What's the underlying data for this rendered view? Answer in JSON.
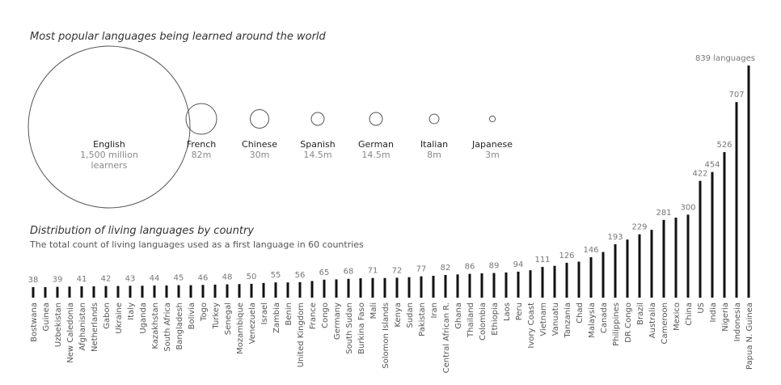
{
  "chart_data": [
    {
      "type": "bubble",
      "title": "Most popular languages being learned around the world",
      "unit": "million learners",
      "items": [
        {
          "name": "English",
          "value": 1500,
          "label_lines": [
            "1,500 million",
            "learners"
          ]
        },
        {
          "name": "French",
          "value": 82,
          "label_lines": [
            "82m"
          ]
        },
        {
          "name": "Chinese",
          "value": 30,
          "label_lines": [
            "30m"
          ]
        },
        {
          "name": "Spanish",
          "value": 14.5,
          "label_lines": [
            "14.5m"
          ]
        },
        {
          "name": "German",
          "value": 14.5,
          "label_lines": [
            "14.5m"
          ]
        },
        {
          "name": "Italian",
          "value": 8,
          "label_lines": [
            "8m"
          ]
        },
        {
          "name": "Japanese",
          "value": 3,
          "label_lines": [
            "3m"
          ]
        }
      ],
      "colors": {
        "stroke": "#555555"
      }
    },
    {
      "type": "bar",
      "title": "Distribution of living languages by country",
      "subtitle": "The total count of living languages used as a first language in 60 countries",
      "last_label_suffix": " languages",
      "categories": [
        "Bostwana",
        "Guinea",
        "Uzbekistan",
        "New Caledonia",
        "Afghanistan",
        "Netherlands",
        "Gabon",
        "Ukraine",
        "Italy",
        "Uganda",
        "Kazakhstan",
        "South Africa",
        "Bangladesh",
        "Bolivia",
        "Togo",
        "Turkey",
        "Senegal",
        "Mozambique",
        "Venezuela",
        "Israel",
        "Zambia",
        "Benin",
        "United Kingdom",
        "France",
        "Congo",
        "Germany",
        "South Sudan",
        "Burkina Faso",
        "Mali",
        "Solomon Islands",
        "Kenya",
        "Sudan",
        "Pakistan",
        "Iran",
        "Central African R.",
        "Ghana",
        "Thailand",
        "Colombia",
        "Ethiopia",
        "Laos",
        "Peru",
        "Ivory Coast",
        "Vietnam",
        "Vanuatu",
        "Tanzania",
        "Chad",
        "Malaysia",
        "Canada",
        "Philippines",
        "DR Congo",
        "Brazil",
        "Australia",
        "Cameroon",
        "Mexico",
        "China",
        "US",
        "India",
        "Nigeria",
        "Indonesia",
        "Papua N. Guinea"
      ],
      "values": [
        38,
        38,
        39,
        40,
        41,
        41,
        42,
        42,
        43,
        43,
        44,
        44,
        45,
        45,
        46,
        47,
        48,
        49,
        50,
        53,
        55,
        55,
        56,
        60,
        65,
        66,
        68,
        70,
        71,
        71,
        72,
        74,
        77,
        79,
        82,
        84,
        86,
        88,
        89,
        91,
        94,
        99,
        111,
        115,
        126,
        130,
        146,
        165,
        193,
        210,
        229,
        245,
        281,
        289,
        300,
        422,
        454,
        526,
        707,
        839
      ],
      "labeled": [
        true,
        false,
        true,
        false,
        true,
        false,
        true,
        false,
        true,
        false,
        true,
        false,
        true,
        false,
        true,
        false,
        true,
        false,
        true,
        false,
        true,
        false,
        true,
        false,
        true,
        false,
        true,
        false,
        true,
        false,
        true,
        false,
        true,
        false,
        true,
        false,
        true,
        false,
        true,
        false,
        true,
        false,
        true,
        false,
        true,
        false,
        true,
        false,
        true,
        false,
        true,
        false,
        true,
        false,
        true,
        true,
        true,
        true,
        true,
        true
      ],
      "ylim": [
        0,
        839
      ],
      "grid": false,
      "colors": {
        "bar": "#111111"
      }
    }
  ]
}
